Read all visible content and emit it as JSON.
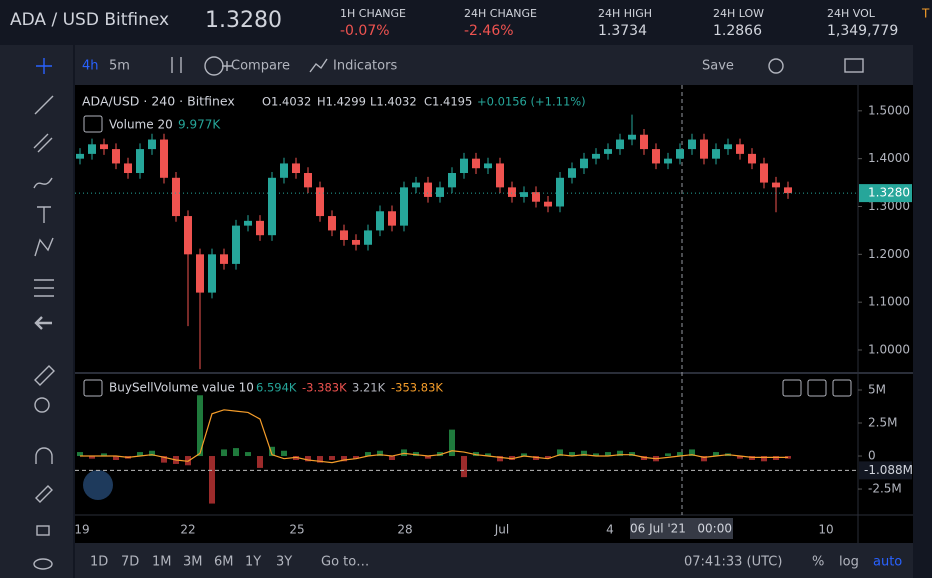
{
  "header": {
    "symbol": "ADA / USD Bitfinex",
    "price": "1.3280",
    "extra": "T"
  },
  "stats": [
    {
      "label": "1H CHANGE",
      "value": "-0.07%"
    },
    {
      "label": "24H CHANGE",
      "value": "-2.46%"
    },
    {
      "label": "24H HIGH",
      "value": "1.3734"
    },
    {
      "label": "24H LOW",
      "value": "1.2866"
    },
    {
      "label": "24H VOL",
      "value": "1,349,779"
    }
  ],
  "toolbar": {
    "interval": "4h",
    "interval2": "5m",
    "compare": "Compare",
    "indicators": "Indicators",
    "save": "Save"
  },
  "legend": {
    "symbol": "ADA/USD · 240 · Bitfinex",
    "o": "O1.4032",
    "h": "H1.4299",
    "l": "L1.4032",
    "c": "C1.4195",
    "change": "+0.0156 (+1.11%)",
    "volume": "Volume 20",
    "volume_value": "9.977K"
  },
  "indicator_legend": {
    "name": "BuySellVolume value 10",
    "v1": "6.594K",
    "v2": "-3.383K",
    "v3": "3.21K",
    "v4": "-353.83K"
  },
  "bottom": {
    "ranges": [
      "1D",
      "7D",
      "1M",
      "3M",
      "6M",
      "1Y",
      "3Y"
    ],
    "goto": "Go to…",
    "time": "07:41:33 (UTC)",
    "pct": "%",
    "log": "log",
    "auto": "auto"
  },
  "chart_data": {
    "type": "candlestick",
    "ylim": [
      0.954,
      1.554
    ],
    "yticks": [
      {
        "value": 1.0,
        "label": "1.0000"
      },
      {
        "value": 1.1,
        "label": "1.1000"
      },
      {
        "value": 1.2,
        "label": "1.2000"
      },
      {
        "value": 1.3,
        "label": "1.3000"
      },
      {
        "value": 1.4,
        "label": "1.4000"
      },
      {
        "value": 1.5,
        "label": "1.5000"
      }
    ],
    "last_price": {
      "value": 1.328,
      "label": "1.3280"
    },
    "colors": {
      "up": "#26a69a",
      "down": "#ef5350",
      "ma": "#f59d2a"
    },
    "time_labels": [
      "19",
      "22",
      "25",
      "28",
      "Jul",
      "4",
      "10"
    ],
    "crosshair_label": "06 Jul '21   00:00",
    "candles": [
      [
        1.4,
        1.422,
        1.388,
        1.41
      ],
      [
        1.41,
        1.442,
        1.398,
        1.43
      ],
      [
        1.43,
        1.442,
        1.408,
        1.42
      ],
      [
        1.42,
        1.432,
        1.378,
        1.39
      ],
      [
        1.39,
        1.402,
        1.358,
        1.37
      ],
      [
        1.37,
        1.432,
        1.358,
        1.42
      ],
      [
        1.42,
        1.452,
        1.408,
        1.44
      ],
      [
        1.44,
        1.452,
        1.348,
        1.36
      ],
      [
        1.36,
        1.372,
        1.268,
        1.28
      ],
      [
        1.28,
        1.292,
        1.05,
        1.2
      ],
      [
        1.2,
        1.212,
        0.96,
        1.12
      ],
      [
        1.12,
        1.212,
        1.108,
        1.2
      ],
      [
        1.2,
        1.212,
        1.168,
        1.18
      ],
      [
        1.18,
        1.272,
        1.168,
        1.26
      ],
      [
        1.26,
        1.282,
        1.248,
        1.27
      ],
      [
        1.27,
        1.282,
        1.228,
        1.24
      ],
      [
        1.24,
        1.372,
        1.228,
        1.36
      ],
      [
        1.36,
        1.402,
        1.348,
        1.39
      ],
      [
        1.39,
        1.402,
        1.358,
        1.37
      ],
      [
        1.37,
        1.382,
        1.328,
        1.34
      ],
      [
        1.34,
        1.352,
        1.268,
        1.28
      ],
      [
        1.28,
        1.292,
        1.238,
        1.25
      ],
      [
        1.25,
        1.262,
        1.218,
        1.23
      ],
      [
        1.23,
        1.242,
        1.208,
        1.22
      ],
      [
        1.22,
        1.262,
        1.208,
        1.25
      ],
      [
        1.25,
        1.302,
        1.238,
        1.29
      ],
      [
        1.29,
        1.302,
        1.248,
        1.26
      ],
      [
        1.26,
        1.352,
        1.248,
        1.34
      ],
      [
        1.34,
        1.362,
        1.328,
        1.35
      ],
      [
        1.35,
        1.362,
        1.308,
        1.32
      ],
      [
        1.32,
        1.352,
        1.308,
        1.34
      ],
      [
        1.34,
        1.382,
        1.328,
        1.37
      ],
      [
        1.37,
        1.412,
        1.358,
        1.4
      ],
      [
        1.4,
        1.412,
        1.368,
        1.38
      ],
      [
        1.38,
        1.402,
        1.368,
        1.39
      ],
      [
        1.39,
        1.402,
        1.328,
        1.34
      ],
      [
        1.34,
        1.352,
        1.308,
        1.32
      ],
      [
        1.32,
        1.342,
        1.308,
        1.33
      ],
      [
        1.33,
        1.342,
        1.298,
        1.31
      ],
      [
        1.31,
        1.322,
        1.288,
        1.3
      ],
      [
        1.3,
        1.372,
        1.288,
        1.36
      ],
      [
        1.36,
        1.392,
        1.348,
        1.38
      ],
      [
        1.38,
        1.412,
        1.368,
        1.4
      ],
      [
        1.4,
        1.422,
        1.388,
        1.41
      ],
      [
        1.41,
        1.432,
        1.398,
        1.42
      ],
      [
        1.42,
        1.452,
        1.408,
        1.44
      ],
      [
        1.44,
        1.492,
        1.428,
        1.45
      ],
      [
        1.45,
        1.462,
        1.408,
        1.42
      ],
      [
        1.42,
        1.432,
        1.378,
        1.39
      ],
      [
        1.39,
        1.412,
        1.378,
        1.4
      ],
      [
        1.4,
        1.432,
        1.388,
        1.42
      ],
      [
        1.42,
        1.452,
        1.408,
        1.44
      ],
      [
        1.44,
        1.452,
        1.388,
        1.4
      ],
      [
        1.4,
        1.432,
        1.388,
        1.42
      ],
      [
        1.42,
        1.442,
        1.408,
        1.43
      ],
      [
        1.43,
        1.442,
        1.398,
        1.41
      ],
      [
        1.41,
        1.422,
        1.378,
        1.39
      ],
      [
        1.39,
        1.402,
        1.338,
        1.35
      ],
      [
        1.35,
        1.362,
        1.288,
        1.34
      ],
      [
        1.34,
        1.352,
        1.316,
        1.328
      ]
    ],
    "indicator": {
      "ylim": [
        -4.39,
        6.06
      ],
      "yticks": [
        {
          "value": 5,
          "label": "5M"
        },
        {
          "value": 2.5,
          "label": "2.5M"
        },
        0,
        {
          "value": -2.5,
          "label": "-2.5M"
        }
      ],
      "last": {
        "value": -1.088,
        "label": "-1.088M"
      },
      "values": [
        0.3,
        -0.2,
        0.2,
        -0.3,
        -0.2,
        0.3,
        0.4,
        -0.5,
        -0.6,
        -0.7,
        4.6,
        -3.6,
        0.5,
        0.6,
        0.3,
        -0.9,
        0.7,
        0.4,
        -0.3,
        -0.4,
        -0.5,
        -0.3,
        -0.4,
        -0.2,
        0.3,
        0.4,
        -0.3,
        0.5,
        0.3,
        -0.2,
        0.3,
        2.0,
        -1.6,
        0.3,
        0.2,
        -0.4,
        -0.3,
        0.2,
        -0.3,
        -0.2,
        0.5,
        0.3,
        0.4,
        0.2,
        0.3,
        0.4,
        0.3,
        -0.3,
        -0.4,
        0.2,
        0.3,
        0.5,
        -0.4,
        0.3,
        0.2,
        -0.2,
        -0.3,
        -0.4,
        -0.3,
        -0.2
      ],
      "ma": [
        0,
        0,
        0,
        0,
        -0.1,
        0,
        0.1,
        -0.1,
        -0.3,
        -0.4,
        0.2,
        3.2,
        3.5,
        3.4,
        3.3,
        2.8,
        0.1,
        -0.2,
        -0.1,
        -0.3,
        -0.4,
        -0.5,
        -0.3,
        -0.2,
        0,
        0.1,
        0,
        0.2,
        0.1,
        0,
        0.1,
        0.4,
        0.3,
        0.1,
        0,
        -0.1,
        -0.2,
        0,
        -0.1,
        -0.2,
        0.1,
        0,
        0.1,
        0,
        0,
        0.1,
        0.1,
        -0.1,
        -0.2,
        -0.1,
        0,
        0.1,
        -0.1,
        0,
        0.1,
        0,
        -0.1,
        -0.1,
        -0.1,
        -0.1
      ]
    }
  }
}
